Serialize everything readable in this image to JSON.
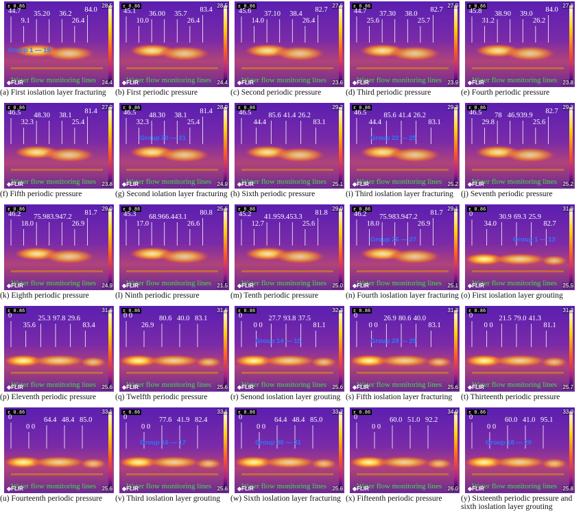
{
  "common": {
    "emissivity": "ε 0.86",
    "water_label": "Water flow monitoring lines",
    "camera": "FLIR"
  },
  "panels": [
    {
      "caption": "(a) First ioslation layer fracturing",
      "tmax": "28.5",
      "tmin": "24.4",
      "values": [
        "44.7",
        "9.1",
        "35.2",
        "0",
        "36.2",
        "26.4",
        "84.0"
      ],
      "group": "Group 1 — 19"
    },
    {
      "caption": "(b) First periodic pressure",
      "tmax": "28.5",
      "tmin": "24.4",
      "values": [
        "45.1",
        "10.0",
        "36.0",
        "0",
        "35.7",
        "26.4",
        "83.4"
      ],
      "group": ""
    },
    {
      "caption": "(c) Second periodic pressure",
      "tmax": "27.6",
      "tmin": "23.6",
      "values": [
        "45.6",
        "14.0",
        "37.1",
        "0",
        "38.4",
        "26.4",
        "82.7"
      ],
      "group": ""
    },
    {
      "caption": "(d) Third periodic pressure",
      "tmax": "27.9",
      "tmin": "23.9",
      "values": [
        "44.7",
        "25.6",
        "37.3",
        "0",
        "38.0",
        "25.7",
        "82.7"
      ],
      "group": ""
    },
    {
      "caption": "(e) Fourth periodic pressure",
      "tmax": "27.8",
      "tmin": "23.8",
      "values": [
        "45.8",
        "31.2",
        "38.9",
        "0",
        "39.0",
        "26.2",
        "84.0"
      ],
      "group": ""
    },
    {
      "caption": "(f) Fifth periodic pressure",
      "tmax": "27.9",
      "tmin": "23.8",
      "values": [
        "46.5",
        "32.3",
        "48.3",
        "0",
        "38.1",
        "25.4",
        "81.4"
      ],
      "group": ""
    },
    {
      "caption": "(g) Second iolation layer fracturing",
      "tmax": "28.9",
      "tmin": "24.9",
      "values": [
        "46.5",
        "32.3",
        "48.3",
        "0",
        "38.1",
        "25.4",
        "81.4"
      ],
      "group": "Group 20 — 21"
    },
    {
      "caption": "(h) Sixth periodic pressure",
      "tmax": "29.2",
      "tmin": "25.1",
      "values": [
        "46.5",
        "44.4",
        "85.6",
        "41.4",
        "26.2",
        "83.1"
      ],
      "group": ""
    },
    {
      "caption": "(i) Third ioslation layer fracturing",
      "tmax": "29.3",
      "tmin": "25.2",
      "values": [
        "46.5",
        "44.4",
        "85.6",
        "41.4",
        "26.2",
        "83.1"
      ],
      "group": "Group 22 — 25"
    },
    {
      "caption": "(j) Seventh periodic pressure",
      "tmax": "29.3",
      "tmin": "25.2",
      "values": [
        "46.5",
        "29.8",
        "78",
        "46.9",
        "39.9",
        "25.6",
        "82.7"
      ],
      "group": ""
    },
    {
      "caption": "(k) Eighth periodic pressure",
      "tmax": "29.0",
      "tmin": "24.9",
      "values": [
        "46.2",
        "18.0",
        "75.9",
        "83.9",
        "47.2",
        "26.9",
        "81.7"
      ],
      "group": ""
    },
    {
      "caption": "(l) Ninth periodic pressure",
      "tmax": "25.6",
      "tmin": "21.5",
      "values": [
        "45.3",
        "17.0",
        "68.9",
        "66.4",
        "43.1",
        "26.6",
        "80.8"
      ],
      "group": ""
    },
    {
      "caption": "(m) Tenth periodic pressure",
      "tmax": "29.0",
      "tmin": "25.0",
      "values": [
        "45.2",
        "12.7",
        "41.9",
        "59.4",
        "53.3",
        "25.6",
        "81.8"
      ],
      "group": ""
    },
    {
      "caption": "(n) Fourth ioslation layer fracturing",
      "tmax": "29.1",
      "tmin": "25.1",
      "values": [
        "46.2",
        "18.0",
        "75.9",
        "83.9",
        "47.2",
        "26.9",
        "81.7"
      ],
      "group": "Group 26 — 27"
    },
    {
      "caption": "(o) First ioslation layer grouting",
      "tmax": "31.9",
      "tmin": "25.5",
      "values": [
        "0",
        "34.0",
        "30.9",
        "69.3",
        "25.9",
        "82.7"
      ],
      "group": "Group 1 — 13"
    },
    {
      "caption": "(p) Eleventh periodic pressure",
      "tmax": "31.6",
      "tmin": "25.6",
      "values": [
        "0",
        "35.6",
        "25.3",
        "97.8",
        "29.6",
        "83.4"
      ],
      "group": ""
    },
    {
      "caption": "(q) Twelfth periodic pressure",
      "tmax": "31.6",
      "tmin": "25.6",
      "values": [
        "0 0",
        "26.9",
        "80.6",
        "40.0",
        "83.1"
      ],
      "group": ""
    },
    {
      "caption": "(r) Senond ioslation layer grouting",
      "tmax": "32.3",
      "tmin": "25.6",
      "values": [
        "0",
        "0 0",
        "27.7",
        "93.8",
        "37.5",
        "81.1"
      ],
      "group": "Group 14 — 15"
    },
    {
      "caption": "(s) Fifth ioslation layer fracturing",
      "tmax": "31.3",
      "tmin": "25.6",
      "values": [
        "0",
        "0 0",
        "26.9",
        "80.6",
        "40.0",
        "83.1"
      ],
      "group": "Group 28 — 29"
    },
    {
      "caption": "(t) Thirteenth periodic pressure",
      "tmax": "31.3",
      "tmin": "25.7",
      "values": [
        "0",
        "0 0",
        "21.5",
        "79.0",
        "41.3",
        "81.1"
      ],
      "group": ""
    },
    {
      "caption": "(u) Fourteenth periodic pressure",
      "tmax": "33.1",
      "tmin": "25.6",
      "values": [
        "0",
        "0 0",
        "64.4",
        "48.4",
        "85.0"
      ],
      "group": ""
    },
    {
      "caption": "(v) Third ioslation layer grouting",
      "tmax": "33.1",
      "tmin": "25.6",
      "values": [
        "0",
        "0 0",
        "77.6",
        "41.9",
        "82.4"
      ],
      "group": "Group 16 — 17"
    },
    {
      "caption": "(w) Sixth ioslation layer fracturing",
      "tmax": "33.2",
      "tmin": "25.6",
      "values": [
        "0",
        "0 0",
        "64.4",
        "48.4",
        "85.0"
      ],
      "group": "Group 30 — 31"
    },
    {
      "caption": "(x) Fifteenth periodic pressure",
      "tmax": "34.0",
      "tmin": "26.0",
      "values": [
        "0",
        "0 0",
        "60.0",
        "51.0",
        "92.2"
      ],
      "group": ""
    },
    {
      "caption": "(y) Sixteenth periodic pressure and sixth ioslation layer grouting",
      "tmax": "33.0",
      "tmin": "25.8",
      "values": [
        "0",
        "0 0",
        "60.0",
        "41.0",
        "95.1"
      ],
      "group": "Group 18 — 20"
    }
  ]
}
